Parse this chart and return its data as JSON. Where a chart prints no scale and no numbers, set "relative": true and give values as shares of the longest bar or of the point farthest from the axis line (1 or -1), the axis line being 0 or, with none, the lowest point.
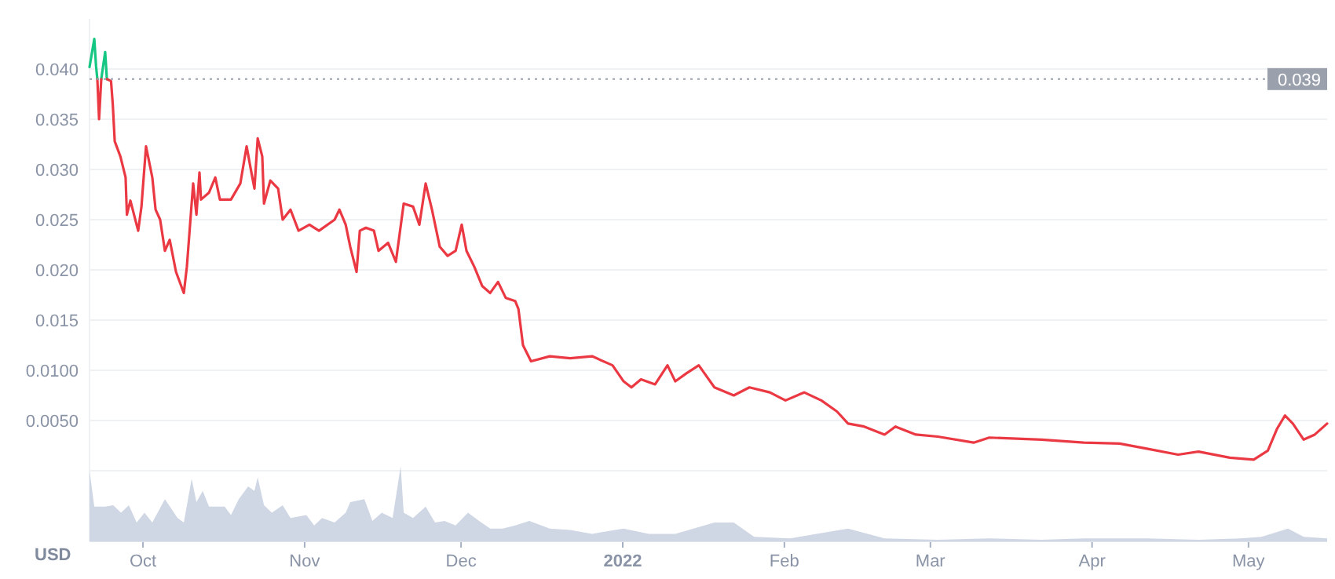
{
  "chart_data": [
    {
      "type": "line",
      "ylabel": "USD",
      "xlim": [
        "2021-09-20T18:00",
        "2022-05-16T02:00"
      ],
      "ylim": [
        0,
        0.045
      ],
      "yticks": [
        {
          "value": 0,
          "label": null
        },
        {
          "value": 0.005,
          "label": "0.0050"
        },
        {
          "value": 0.01,
          "label": "0.0100"
        },
        {
          "value": 0.015,
          "label": "0.015"
        },
        {
          "value": 0.02,
          "label": "0.020"
        },
        {
          "value": 0.025,
          "label": "0.025"
        },
        {
          "value": 0.03,
          "label": "0.030"
        },
        {
          "value": 0.035,
          "label": "0.035"
        },
        {
          "value": 0.04,
          "label": "0.040"
        }
      ],
      "grid": "y",
      "tick_labels": "y",
      "ref_lines": [
        {
          "axis": "y",
          "value": 0.039,
          "label": "0.039",
          "color": "#9aa1ad",
          "line_style": "dotted"
        }
      ],
      "series": [
        {
          "color": "#16c784",
          "x": [
            "2021-09-20T18:00",
            "2021-09-21T16:00",
            "2021-09-22T00:00",
            "2021-09-22T06:00",
            "2021-09-22T14:00",
            "2021-09-23T00:00",
            "2021-09-23T18:00",
            "2021-09-24T02:00"
          ],
          "values": [
            0.0402,
            0.043,
            0.0403,
            0.039,
            null,
            0.039,
            0.0417,
            0.039
          ]
        },
        {
          "color": "#ea3943",
          "x": [
            "2021-09-22T06:00",
            "2021-09-22T14:00",
            "2021-09-23T00:00",
            "2021-09-23T18:00",
            "2021-09-24T02:00",
            "2021-09-24T21:00",
            "2021-09-25T05:00",
            "2021-09-25T14:00",
            "2021-09-26T16:00",
            "2021-09-27T16:00",
            "2021-09-27T22:00",
            "2021-09-28T14:00",
            "2021-09-30T02:00",
            "2021-09-30T17:00",
            "2021-10-01T14:00",
            "2021-10-02T19:00",
            "2021-10-03T10:00",
            "2021-10-04T07:00",
            "2021-10-05T05:00",
            "2021-10-06T03:00",
            "2021-10-07T08:00",
            "2021-10-08T20:00",
            "2021-10-09T10:00",
            "2021-10-10T15:00",
            "2021-10-11T06:00",
            "2021-10-11T20:00",
            "2021-10-12T03:00",
            "2021-10-13T16:00",
            "2021-10-14T21:00",
            "2021-10-15T18:00",
            "2021-10-17T21:00",
            "2021-10-19T16:00",
            "2021-10-20T21:00",
            "2021-10-21T19:00",
            "2021-10-22T09:00",
            "2021-10-23T00:00",
            "2021-10-23T21:00",
            "2021-10-24T05:00",
            "2021-10-25T10:00",
            "2021-10-26T22:00",
            "2021-10-27T19:00",
            "2021-10-29T07:00",
            "2021-10-30T20:00",
            "2021-11-01T22:00",
            "2021-11-03T18:00",
            "2021-11-06T18:00",
            "2021-11-07T16:00",
            "2021-11-08T21:00",
            "2021-11-09T18:00",
            "2021-11-10T23:00",
            "2021-11-11T14:00",
            "2021-11-12T18:00",
            "2021-11-14T07:00",
            "2021-11-15T04:00",
            "2021-11-17T00:00",
            "2021-11-18T12:00",
            "2021-11-20T00:00",
            "2021-11-21T19:00",
            "2021-11-23T00:00",
            "2021-11-24T05:00",
            "2021-11-25T10:00",
            "2021-11-26T22:00",
            "2021-11-28T10:00",
            "2021-11-29T23:00",
            "2021-12-01T03:00",
            "2021-12-02T01:00",
            "2021-12-03T13:00",
            "2021-12-05T01:00",
            "2021-12-06T14:00",
            "2021-12-08T02:00",
            "2021-12-09T14:00",
            "2021-12-11T09:00",
            "2021-12-12T00:00",
            "2021-12-12T21:00",
            "2021-12-14T10:00",
            "2021-12-18T00:00",
            "2021-12-21T22:00",
            "2021-12-26T03:00",
            "2021-12-30T01:00",
            "2022-01-01T04:00",
            "2022-01-02T16:00",
            "2022-01-04T12:00",
            "2022-01-07T05:00",
            "2022-01-09T14:00",
            "2022-01-11T02:00",
            "2022-01-13T05:00",
            "2022-01-15T14:00",
            "2022-01-18T14:00",
            "2022-01-22T07:00",
            "2022-01-25T07:00",
            "2022-01-29T05:00",
            "2022-02-01T05:00",
            "2022-02-04T19:00",
            "2022-02-08T02:00",
            "2022-02-11T02:00",
            "2022-02-13T05:00",
            "2022-02-16T07:00",
            "2022-02-20T05:00",
            "2022-02-22T07:00",
            "2022-02-26T05:00",
            "2022-03-02T10:00",
            "2022-03-09T07:00",
            "2022-03-12T07:00",
            "2022-03-22T07:00",
            "2022-03-30T10:00",
            "2022-04-06T07:00",
            "2022-04-11T12:00",
            "2022-04-17T12:00",
            "2022-04-21T10:00",
            "2022-04-27T10:00",
            "2022-05-02T00:00",
            "2022-05-04T17:00",
            "2022-05-06T12:00",
            "2022-05-08T00:00",
            "2022-05-09T12:00",
            "2022-05-11T14:00",
            "2022-05-13T17:00",
            "2022-05-16T02:00"
          ],
          "values": [
            0.039,
            0.035,
            0.039,
            null,
            0.039,
            0.0388,
            0.0365,
            0.0328,
            0.0313,
            0.0292,
            0.0255,
            0.0269,
            0.0239,
            0.0263,
            0.0323,
            0.0292,
            0.026,
            0.025,
            0.0219,
            0.023,
            0.0198,
            0.0177,
            0.0203,
            0.0286,
            0.0255,
            0.0297,
            0.027,
            0.0277,
            0.0292,
            0.027,
            0.027,
            0.0286,
            0.0323,
            0.0297,
            0.0281,
            0.0331,
            0.0313,
            0.0266,
            0.0289,
            0.0281,
            0.025,
            0.026,
            0.0239,
            0.0245,
            0.0239,
            0.025,
            0.026,
            0.0245,
            0.0223,
            0.0198,
            0.0239,
            0.0242,
            0.0239,
            0.0219,
            0.0227,
            0.0208,
            0.0266,
            0.0263,
            0.0245,
            0.0286,
            0.026,
            0.0223,
            0.0214,
            0.0219,
            0.0245,
            0.0219,
            0.0203,
            0.0184,
            0.0177,
            0.0188,
            0.0172,
            0.0169,
            0.0161,
            0.0125,
            0.0109,
            0.0114,
            0.0112,
            0.0114,
            0.0105,
            0.0089,
            0.0083,
            0.0091,
            0.0086,
            0.0105,
            0.0089,
            0.0097,
            0.0105,
            0.0083,
            0.0075,
            0.0083,
            0.0078,
            0.007,
            0.0078,
            0.007,
            0.0059,
            0.0047,
            0.0044,
            0.0036,
            0.0044,
            0.0036,
            0.0034,
            0.0028,
            0.0033,
            0.0031,
            0.0028,
            0.0027,
            0.0022,
            0.0016,
            0.0019,
            0.0013,
            0.0011,
            0.002,
            0.0042,
            0.0055,
            0.0047,
            0.0031,
            0.0036,
            0.0047
          ]
        }
      ]
    },
    {
      "type": "area",
      "relative": true,
      "xlim": [
        "2021-09-20T18:00",
        "2022-05-16T02:00"
      ],
      "xticks": [
        {
          "value": "2021-10-01",
          "label": "Oct"
        },
        {
          "value": "2021-11-01",
          "label": "Nov"
        },
        {
          "value": "2021-12-01",
          "label": "Dec"
        },
        {
          "value": "2022-01-01",
          "label": "2022"
        },
        {
          "value": "2022-02-01",
          "label": "Feb"
        },
        {
          "value": "2022-03-01",
          "label": "Mar"
        },
        {
          "value": "2022-04-01",
          "label": "Apr"
        },
        {
          "value": "2022-05-01",
          "label": "May"
        }
      ],
      "tick_labels": "x",
      "series": [
        {
          "color": "#cfd6e4",
          "x": [
            "2021-09-20T18:00",
            "2021-09-21T16:00",
            "2021-09-23T18:00",
            "2021-09-25T07:00",
            "2021-09-26T19:00",
            "2021-09-28T07:00",
            "2021-09-29T19:00",
            "2021-10-01T07:00",
            "2021-10-02T19:00",
            "2021-10-05T05:00",
            "2021-10-07T15:00",
            "2021-10-08T20:00",
            "2021-10-10T08:00",
            "2021-10-11T06:00",
            "2021-10-12T11:00",
            "2021-10-13T16:00",
            "2021-10-16T16:00",
            "2021-10-17T21:00",
            "2021-10-19T09:00",
            "2021-10-21T04:00",
            "2021-10-22T09:00",
            "2021-10-23T00:00",
            "2021-10-24T05:00",
            "2021-10-25T17:00",
            "2021-10-27T19:00",
            "2021-10-29T07:00",
            "2021-11-01T08:00",
            "2021-11-02T20:00",
            "2021-11-04T08:00",
            "2021-11-06T18:00",
            "2021-11-08T21:00",
            "2021-11-09T18:00",
            "2021-11-12T11:00",
            "2021-11-14T00:00",
            "2021-11-15T19:00",
            "2021-11-17T21:00",
            "2021-11-19T10:00",
            "2021-11-20T00:00",
            "2021-11-21T19:00",
            "2021-11-24T05:00",
            "2021-11-26T00:00",
            "2021-11-27T20:00",
            "2021-11-29T23:00",
            "2021-12-02T08:00",
            "2021-12-04T11:00",
            "2021-12-06T14:00",
            "2021-12-08T23:00",
            "2021-12-11T09:00",
            "2021-12-14T02:00",
            "2021-12-18T00:00",
            "2021-12-21T22:00",
            "2021-12-26T03:00",
            "2022-01-01T04:00",
            "2022-01-06T00:00",
            "2022-01-11T02:00",
            "2022-01-18T14:00",
            "2022-01-22T07:00",
            "2022-01-26T05:00",
            "2022-02-02T02:00",
            "2022-02-13T05:00",
            "2022-02-20T05:00",
            "2022-03-02T10:00",
            "2022-03-12T07:00",
            "2022-03-22T07:00",
            "2022-03-30T10:00",
            "2022-04-11T12:00",
            "2022-04-21T10:00",
            "2022-04-29T12:00",
            "2022-05-03T12:00",
            "2022-05-08T14:00",
            "2022-05-11T14:00",
            "2022-05-16T02:00"
          ],
          "values": [
            0.94,
            0.46,
            0.46,
            0.48,
            0.38,
            0.48,
            0.25,
            0.38,
            0.25,
            0.56,
            0.31,
            0.25,
            0.83,
            0.52,
            0.67,
            0.46,
            0.46,
            0.35,
            0.56,
            0.73,
            0.67,
            0.85,
            0.48,
            0.38,
            0.48,
            0.31,
            0.35,
            0.21,
            0.31,
            0.25,
            0.38,
            0.52,
            0.56,
            0.27,
            0.38,
            0.31,
            1,
            0.38,
            0.31,
            0.46,
            0.25,
            0.27,
            0.21,
            0.38,
            0.27,
            0.17,
            0.17,
            0.21,
            0.27,
            0.17,
            0.15,
            0.1,
            0.17,
            0.1,
            0.1,
            0.25,
            0.25,
            0.06,
            0.04,
            0.17,
            0.04,
            0.02,
            0.04,
            0.02,
            0.04,
            0.04,
            0.02,
            0.04,
            0.06,
            0.17,
            0.06,
            0.04
          ]
        }
      ]
    }
  ]
}
